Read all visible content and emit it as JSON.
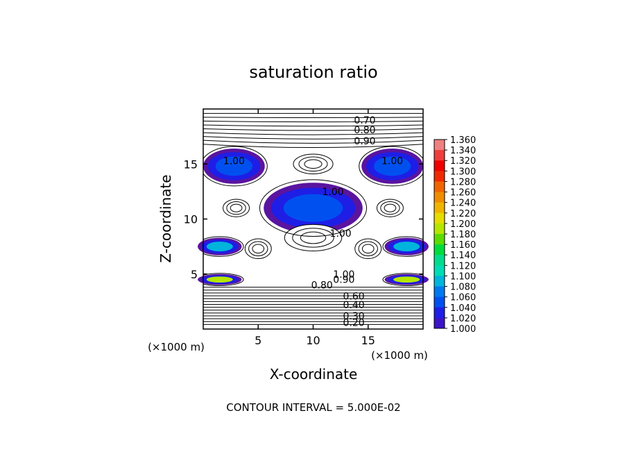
{
  "chart_data": {
    "type": "heatmap",
    "title": "saturation ratio",
    "xlabel": "X-coordinate",
    "ylabel": "Z-coordinate",
    "x_unit": "(×1000 m)",
    "y_unit": "(×1000 m)",
    "xlim": [
      0,
      20
    ],
    "ylim": [
      0,
      20
    ],
    "x_ticks": [
      5,
      10,
      15
    ],
    "y_ticks": [
      5,
      10,
      15
    ],
    "contour_interval_text": "CONTOUR INTERVAL = 5.000E-02",
    "contour_labels": [
      {
        "text": "0.70",
        "x": 14.7,
        "z": 19.0
      },
      {
        "text": "0.80",
        "x": 14.7,
        "z": 18.1
      },
      {
        "text": "0.90",
        "x": 14.7,
        "z": 17.1
      },
      {
        "text": "1.00",
        "x": 2.8,
        "z": 15.3
      },
      {
        "text": "1.00",
        "x": 17.2,
        "z": 15.3
      },
      {
        "text": "1.00",
        "x": 11.8,
        "z": 12.5
      },
      {
        "text": "1.00",
        "x": 12.5,
        "z": 8.7
      },
      {
        "text": "1.00",
        "x": 12.8,
        "z": 5.0
      },
      {
        "text": "0.90",
        "x": 12.8,
        "z": 4.5
      },
      {
        "text": "0.80",
        "x": 10.8,
        "z": 4.0
      },
      {
        "text": "0.60",
        "x": 13.7,
        "z": 3.0
      },
      {
        "text": "0.40",
        "x": 13.7,
        "z": 2.2
      },
      {
        "text": "0.30",
        "x": 13.7,
        "z": 1.2
      },
      {
        "text": "0.20",
        "x": 13.7,
        "z": 0.6
      }
    ],
    "colorbar": {
      "min": 1.0,
      "max": 1.36,
      "labels": [
        "1.360",
        "1.340",
        "1.320",
        "1.300",
        "1.280",
        "1.260",
        "1.240",
        "1.220",
        "1.200",
        "1.180",
        "1.160",
        "1.140",
        "1.120",
        "1.100",
        "1.080",
        "1.060",
        "1.040",
        "1.020",
        "1.000"
      ],
      "colors": [
        "#f08080",
        "#f03c3c",
        "#f00000",
        "#f02800",
        "#f06400",
        "#f08c00",
        "#f0b400",
        "#e6dc00",
        "#b4e600",
        "#5adc00",
        "#00dc3c",
        "#00dc8c",
        "#00dcb4",
        "#00b4dc",
        "#0078f0",
        "#0050f0",
        "#1e1ee6",
        "#3c14c8",
        "#5a14a0"
      ]
    },
    "regions": [
      {
        "name": "upper-left-band",
        "cx": 2.8,
        "cz": 14.8,
        "rx": 2.8,
        "rz": 1.6,
        "value": 1.05
      },
      {
        "name": "upper-right-band",
        "cx": 17.2,
        "cz": 14.8,
        "rx": 2.8,
        "rz": 1.6,
        "value": 1.05
      },
      {
        "name": "central-dome",
        "cx": 10.0,
        "cz": 11.0,
        "rx": 4.5,
        "rz": 2.3,
        "value": 1.05
      },
      {
        "name": "left-jet",
        "cx": 1.5,
        "cz": 7.5,
        "rx": 2.0,
        "rz": 0.8,
        "value": 1.1
      },
      {
        "name": "right-jet",
        "cx": 18.5,
        "cz": 7.5,
        "rx": 2.0,
        "rz": 0.8,
        "value": 1.1
      },
      {
        "name": "lower-left-jet",
        "cx": 1.5,
        "cz": 4.5,
        "rx": 2.0,
        "rz": 0.5,
        "value": 1.2
      },
      {
        "name": "lower-right-jet",
        "cx": 18.5,
        "cz": 4.5,
        "rx": 2.0,
        "rz": 0.5,
        "value": 1.2
      }
    ]
  }
}
